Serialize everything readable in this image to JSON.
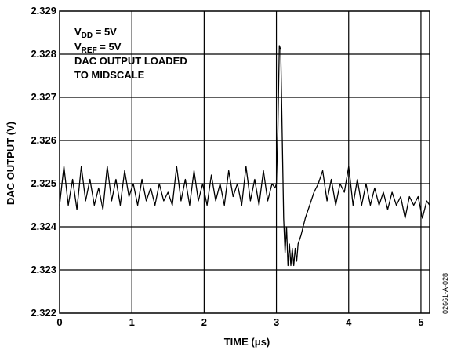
{
  "chart_data": {
    "type": "line",
    "xlabel_prefix": "TIME (",
    "xlabel_unit": "μs",
    "xlabel_suffix": ")",
    "ylabel": "DAC OUTPUT (V)",
    "xlim": [
      0,
      5.12
    ],
    "ylim": [
      2.322,
      2.329
    ],
    "x_ticks": [
      "0",
      "1",
      "2",
      "3",
      "4",
      "5"
    ],
    "y_ticks": [
      "2.322",
      "2.323",
      "2.324",
      "2.325",
      "2.326",
      "2.327",
      "2.328",
      "2.329"
    ],
    "grid": true,
    "annotations": {
      "vdd_main": "V",
      "vdd_sub": "DD",
      "vdd_rest": " = 5V",
      "vref_main": "V",
      "vref_sub": "REF",
      "vref_rest": " = 5V",
      "line3": "DAC OUTPUT LOADED",
      "line4": "TO MIDSCALE"
    },
    "figure_id": "02661-A-028",
    "series": [
      {
        "color": "#000000",
        "x": [
          0.0,
          0.06,
          0.12,
          0.18,
          0.24,
          0.3,
          0.36,
          0.42,
          0.48,
          0.54,
          0.6,
          0.66,
          0.72,
          0.78,
          0.84,
          0.9,
          0.96,
          1.02,
          1.08,
          1.14,
          1.2,
          1.26,
          1.32,
          1.38,
          1.44,
          1.5,
          1.56,
          1.62,
          1.68,
          1.74,
          1.8,
          1.86,
          1.92,
          1.98,
          2.04,
          2.1,
          2.16,
          2.22,
          2.28,
          2.34,
          2.4,
          2.46,
          2.52,
          2.58,
          2.64,
          2.7,
          2.76,
          2.82,
          2.88,
          2.94,
          2.98,
          3.0,
          3.02,
          3.04,
          3.06,
          3.08,
          3.1,
          3.12,
          3.14,
          3.16,
          3.18,
          3.2,
          3.22,
          3.24,
          3.26,
          3.28,
          3.3,
          3.34,
          3.4,
          3.46,
          3.52,
          3.58,
          3.64,
          3.7,
          3.76,
          3.82,
          3.88,
          3.94,
          4.0,
          4.06,
          4.12,
          4.18,
          4.24,
          4.3,
          4.36,
          4.42,
          4.48,
          4.54,
          4.6,
          4.66,
          4.72,
          4.78,
          4.84,
          4.9,
          4.96,
          5.02,
          5.08,
          5.12
        ],
        "y": [
          2.3245,
          2.3254,
          2.3245,
          2.3251,
          2.3244,
          2.3254,
          2.3246,
          2.3251,
          2.3245,
          2.3249,
          2.3244,
          2.3254,
          2.3246,
          2.3251,
          2.3245,
          2.3253,
          2.3247,
          2.325,
          2.3245,
          2.3251,
          2.3246,
          2.3249,
          2.3245,
          2.325,
          2.3246,
          2.3248,
          2.3245,
          2.3254,
          2.3246,
          2.3251,
          2.3245,
          2.3253,
          2.3246,
          2.325,
          2.3245,
          2.3252,
          2.3246,
          2.325,
          2.3245,
          2.3253,
          2.3247,
          2.325,
          2.3245,
          2.3254,
          2.3246,
          2.3251,
          2.3245,
          2.3253,
          2.3246,
          2.325,
          2.3249,
          2.325,
          2.3262,
          2.3282,
          2.3281,
          2.3262,
          2.3242,
          2.3234,
          2.324,
          2.3231,
          2.3236,
          2.3231,
          2.3235,
          2.3231,
          2.3235,
          2.3232,
          2.3236,
          2.3238,
          2.3242,
          2.3245,
          2.3248,
          2.325,
          2.3253,
          2.3246,
          2.3251,
          2.3245,
          2.325,
          2.3248,
          2.3254,
          2.3245,
          2.3251,
          2.3245,
          2.325,
          2.3245,
          2.3249,
          2.3245,
          2.3248,
          2.3244,
          2.3248,
          2.3245,
          2.3247,
          2.3242,
          2.3247,
          2.3245,
          2.3247,
          2.3242,
          2.3246,
          2.3245
        ]
      }
    ]
  }
}
